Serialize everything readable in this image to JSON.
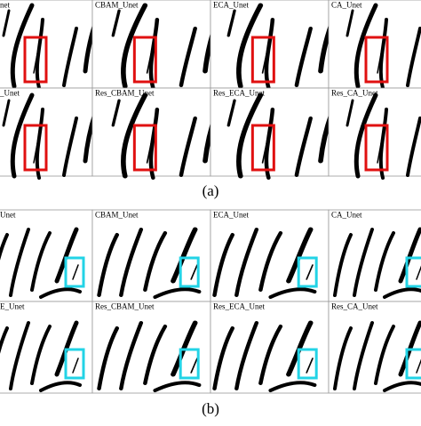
{
  "panel_a": {
    "cells": [
      [
        "net",
        "CBAM_Unet",
        "ECA_Unet",
        "CA_Unet"
      ],
      [
        "_Unet",
        "Res_CBAM_Unet",
        "Res_ECA_Unet",
        "Res_CA_Unet"
      ]
    ],
    "caption": "(a)"
  },
  "panel_b": {
    "cells": [
      [
        "Unet",
        "CBAM_Unet",
        "ECA_Unet",
        "CA_Unet"
      ],
      [
        "E_Unet",
        "Res_CBAM_Unet",
        "Res_ECA_Unet",
        "Res_CA_Unet"
      ]
    ],
    "caption": "(b)"
  }
}
